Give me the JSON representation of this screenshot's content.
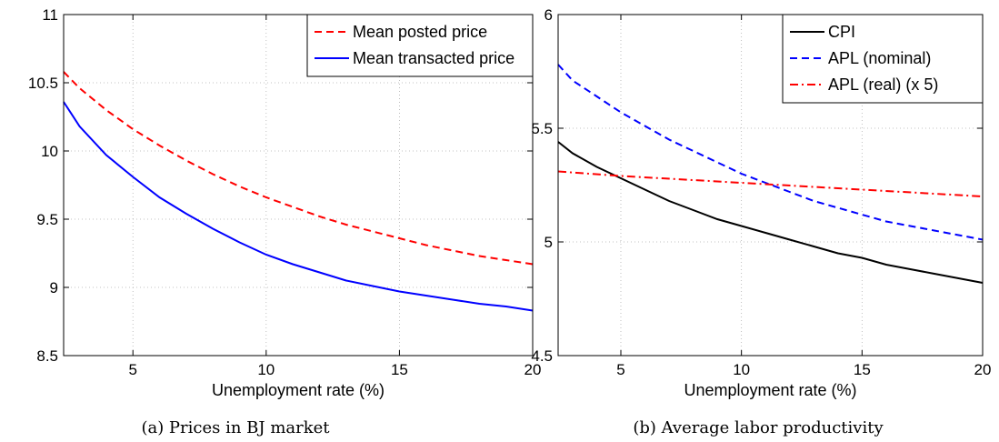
{
  "chart_data": [
    {
      "type": "line",
      "caption": "(a) Prices in BJ market",
      "title": "",
      "xlabel": "Unemployment rate (%)",
      "ylabel": "",
      "xlim": [
        2.4,
        20
      ],
      "ylim": [
        8.5,
        11
      ],
      "xticks": [
        5,
        10,
        15,
        20
      ],
      "yticks": [
        8.5,
        9,
        9.5,
        10,
        10.5,
        11
      ],
      "grid": true,
      "legend_position": "top-right",
      "series": [
        {
          "name": "Mean posted price",
          "color": "#ff0000",
          "style": "dashed",
          "x": [
            2.4,
            3,
            4,
            5,
            6,
            7,
            8,
            9,
            10,
            11,
            12,
            13,
            14,
            15,
            16,
            17,
            18,
            19,
            20
          ],
          "y": [
            10.58,
            10.46,
            10.3,
            10.16,
            10.04,
            9.93,
            9.83,
            9.74,
            9.66,
            9.59,
            9.52,
            9.46,
            9.41,
            9.36,
            9.31,
            9.27,
            9.23,
            9.2,
            9.17
          ]
        },
        {
          "name": "Mean transacted price",
          "color": "#0000ff",
          "style": "solid",
          "x": [
            2.4,
            3,
            4,
            5,
            6,
            7,
            8,
            9,
            10,
            11,
            12,
            13,
            14,
            15,
            16,
            17,
            18,
            19,
            20
          ],
          "y": [
            10.36,
            10.18,
            9.97,
            9.81,
            9.66,
            9.54,
            9.43,
            9.33,
            9.24,
            9.17,
            9.11,
            9.05,
            9.01,
            8.97,
            8.94,
            8.91,
            8.88,
            8.86,
            8.83
          ]
        }
      ]
    },
    {
      "type": "line",
      "caption": "(b) Average labor productivity",
      "title": "",
      "xlabel": "Unemployment rate (%)",
      "ylabel": "",
      "xlim": [
        2.4,
        20
      ],
      "ylim": [
        4.5,
        6
      ],
      "xticks": [
        5,
        10,
        15,
        20
      ],
      "yticks": [
        4.5,
        5,
        5.5,
        6
      ],
      "grid": true,
      "legend_position": "top-right",
      "series": [
        {
          "name": "CPI",
          "color": "#000000",
          "style": "solid",
          "x": [
            2.4,
            3,
            4,
            5,
            6,
            7,
            8,
            9,
            10,
            11,
            12,
            13,
            14,
            15,
            16,
            17,
            18,
            19,
            20
          ],
          "y": [
            5.44,
            5.39,
            5.33,
            5.28,
            5.23,
            5.18,
            5.14,
            5.1,
            5.07,
            5.04,
            5.01,
            4.98,
            4.95,
            4.93,
            4.9,
            4.88,
            4.86,
            4.84,
            4.82
          ]
        },
        {
          "name": "APL (nominal)",
          "color": "#0000ff",
          "style": "dashed",
          "x": [
            2.4,
            3,
            4,
            5,
            6,
            7,
            8,
            9,
            10,
            11,
            12,
            13,
            14,
            15,
            16,
            17,
            18,
            19,
            20
          ],
          "y": [
            5.78,
            5.71,
            5.64,
            5.57,
            5.51,
            5.45,
            5.4,
            5.35,
            5.3,
            5.26,
            5.22,
            5.18,
            5.15,
            5.12,
            5.09,
            5.07,
            5.05,
            5.03,
            5.01
          ]
        },
        {
          "name": "APL (real) (x 5)",
          "color": "#ff0000",
          "style": "dashdot",
          "x": [
            2.4,
            5,
            10,
            15,
            20
          ],
          "y": [
            5.31,
            5.29,
            5.26,
            5.23,
            5.2
          ]
        }
      ]
    }
  ]
}
